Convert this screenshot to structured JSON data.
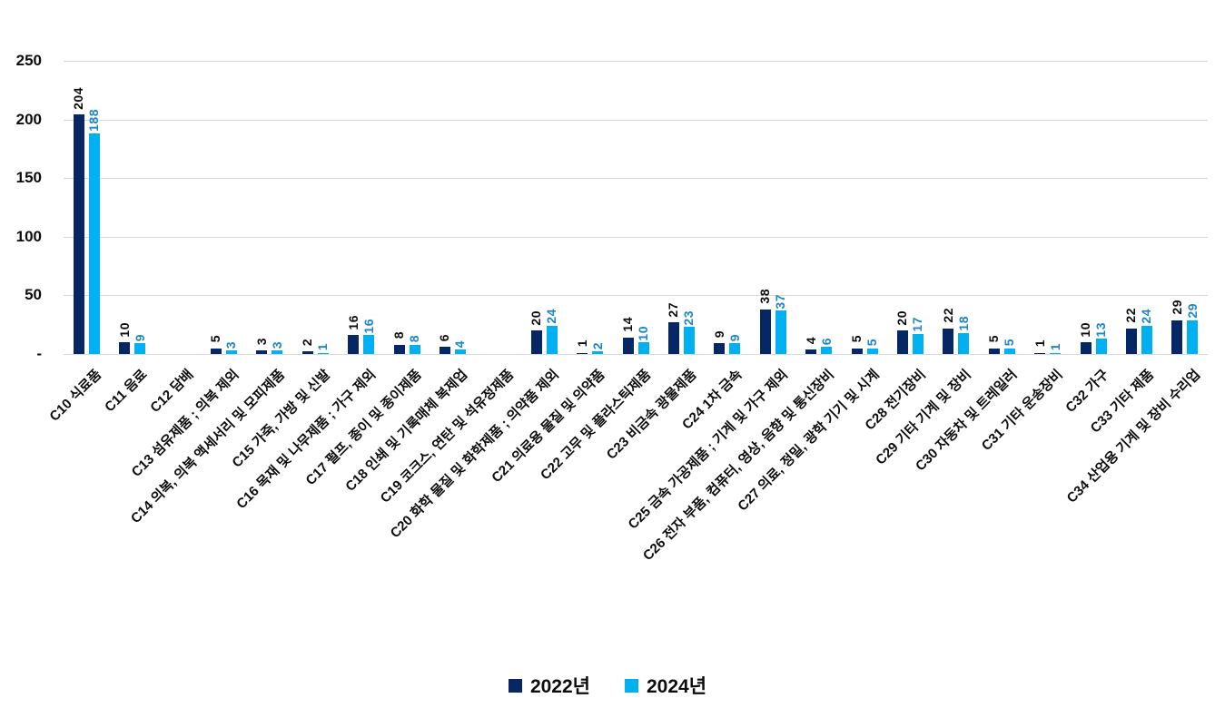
{
  "chart_data": {
    "type": "bar",
    "title": "",
    "xlabel": "",
    "ylabel": "",
    "ylim": [
      0,
      250
    ],
    "ytick_values": [
      250,
      200,
      150,
      100,
      50,
      0
    ],
    "ytick_labels": [
      "250",
      "200",
      "150",
      "100",
      "50",
      "-"
    ],
    "grid": true,
    "legend_position": "bottom",
    "categories": [
      "C10 식료품",
      "C11 음료",
      "C12 담배",
      "C13 섬유제품 ; 의복 제외",
      "C14 의복, 의복 액세서리 및 모피제품",
      "C15 가죽, 가방 및 신발",
      "C16 목재 및 나무제품 ; 가구 제외",
      "C17 펄프, 종이 및 종이제품",
      "C18 인쇄 및 기록매체 복제업",
      "C19 코크스, 연탄 및 석유정제품",
      "C20 화학 물질 및 화학제품 ; 의약품 제외",
      "C21 의료용 물질 및 의약품",
      "C22 고무 및 플라스틱제품",
      "C23 비금속 광물제품",
      "C24 1차 금속",
      "C25 금속 가공제품 ; 기계 및 가구 제외",
      "C26 전자 부품, 컴퓨터, 영상, 음향 및 통신장비",
      "C27 의료, 정밀, 광학 기기 및 시계",
      "C28 전기장비",
      "C29 기타 기계 및 장비",
      "C30 자동차 및 트레일러",
      "C31 기타 운송장비",
      "C32 가구",
      "C33 기타 제품",
      "C34 산업용 기계 및 장비 수리업"
    ],
    "series": [
      {
        "name": "2022년",
        "color": "#072664",
        "label_color": "#0d0d0d",
        "values": [
          204,
          10,
          null,
          5,
          3,
          2,
          16,
          8,
          6,
          null,
          20,
          1,
          14,
          27,
          9,
          38,
          4,
          5,
          20,
          22,
          5,
          1,
          10,
          22,
          29
        ]
      },
      {
        "name": "2024년",
        "color": "#00b0f0",
        "label_color": "#1b86c8",
        "values": [
          188,
          9,
          null,
          3,
          3,
          1,
          16,
          8,
          4,
          null,
          24,
          2,
          10,
          23,
          9,
          37,
          6,
          5,
          17,
          18,
          5,
          1,
          13,
          24,
          29
        ]
      }
    ]
  },
  "colors": {
    "gridline": "#d9d9d9",
    "axis_text": "#0d0d0d",
    "background": "#ffffff"
  }
}
